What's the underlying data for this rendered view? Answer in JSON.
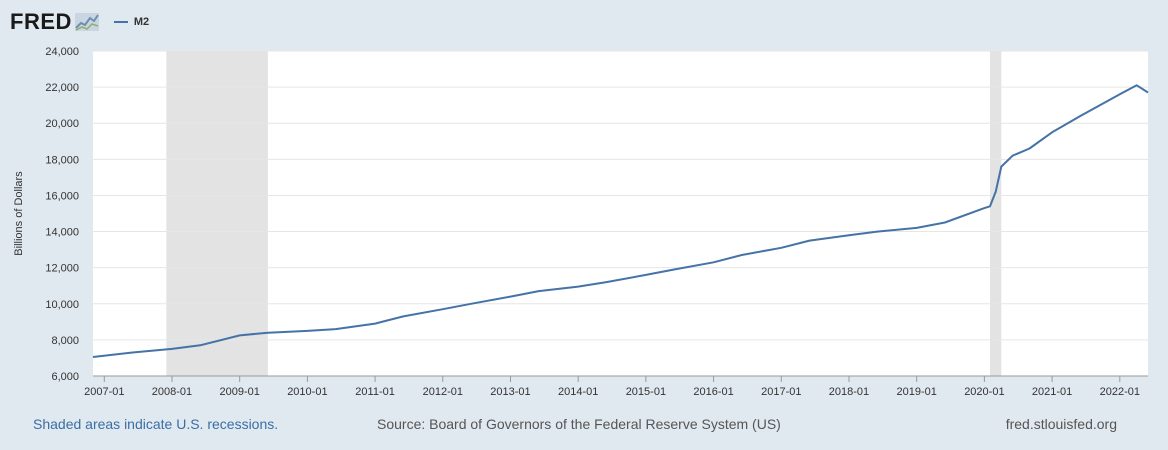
{
  "header": {
    "logo_text": "FRED",
    "legend_label": "M2"
  },
  "colors": {
    "series": "#4572a7",
    "recession_shade": "#e3e3e3",
    "background": "#e1e9f0",
    "plot_background": "#ffffff",
    "link": "#3a6ea5"
  },
  "footer": {
    "note": "Shaded areas indicate U.S. recessions.",
    "source": "Source: Board of Governors of the Federal Reserve System (US)",
    "site": "fred.stlouisfed.org"
  },
  "chart_data": {
    "type": "line",
    "title": "",
    "xlabel": "",
    "ylabel": "Billions of Dollars",
    "xlim": [
      "2006-11",
      "2022-06"
    ],
    "ylim": [
      6000,
      24000
    ],
    "yticks": [
      6000,
      8000,
      10000,
      12000,
      14000,
      16000,
      18000,
      20000,
      22000,
      24000
    ],
    "ytick_labels": [
      "6,000",
      "8,000",
      "10,000",
      "12,000",
      "14,000",
      "16,000",
      "18,000",
      "20,000",
      "22,000",
      "24,000"
    ],
    "xticks": [
      "2007-01",
      "2008-01",
      "2009-01",
      "2010-01",
      "2011-01",
      "2012-01",
      "2013-01",
      "2014-01",
      "2015-01",
      "2016-01",
      "2017-01",
      "2018-01",
      "2019-01",
      "2020-01",
      "2021-01",
      "2022-01"
    ],
    "grid": true,
    "recessions": [
      {
        "start": "2007-12",
        "end": "2009-06"
      },
      {
        "start": "2020-02",
        "end": "2020-04"
      }
    ],
    "series": [
      {
        "name": "M2",
        "x": [
          "2006-11",
          "2007-06",
          "2008-01",
          "2008-06",
          "2009-01",
          "2009-06",
          "2010-01",
          "2010-06",
          "2011-01",
          "2011-06",
          "2012-01",
          "2012-06",
          "2013-01",
          "2013-06",
          "2014-01",
          "2014-06",
          "2015-01",
          "2015-06",
          "2016-01",
          "2016-06",
          "2017-01",
          "2017-06",
          "2018-01",
          "2018-06",
          "2019-01",
          "2019-06",
          "2020-01",
          "2020-02",
          "2020-03",
          "2020-04",
          "2020-05",
          "2020-06",
          "2020-09",
          "2021-01",
          "2021-06",
          "2022-01",
          "2022-04",
          "2022-06"
        ],
        "values": [
          7050,
          7300,
          7500,
          7700,
          8250,
          8400,
          8500,
          8600,
          8900,
          9300,
          9700,
          10000,
          10400,
          10700,
          10950,
          11200,
          11600,
          11900,
          12300,
          12700,
          13100,
          13500,
          13800,
          14000,
          14200,
          14500,
          15300,
          15400,
          16200,
          17600,
          17900,
          18200,
          18600,
          19500,
          20400,
          21600,
          22100,
          21700
        ]
      }
    ]
  }
}
